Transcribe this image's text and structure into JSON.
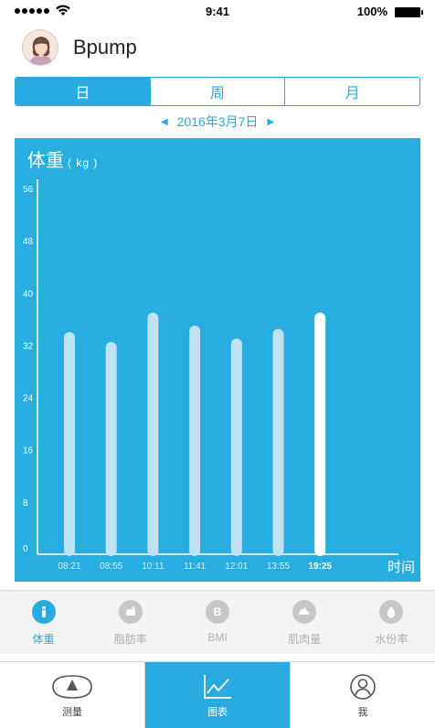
{
  "status_bar": {
    "time": "9:41",
    "battery": "100%"
  },
  "header": {
    "username": "Bpump"
  },
  "segments": [
    {
      "label": "日",
      "active": true
    },
    {
      "label": "周",
      "active": false
    },
    {
      "label": "月",
      "active": false
    }
  ],
  "date_nav": {
    "date": "2016年3月7日"
  },
  "chart_data": {
    "type": "bar",
    "title": "体重",
    "unit": "( kg )",
    "xlabel": "时间",
    "ylim": [
      0,
      56
    ],
    "yticks": [
      0,
      8,
      16,
      24,
      32,
      40,
      48,
      56
    ],
    "categories": [
      "08:21",
      "08:55",
      "10:11",
      "11:41",
      "12:01",
      "13:55",
      "19:25"
    ],
    "values": [
      34,
      32.5,
      37,
      35,
      33,
      34.5,
      37
    ],
    "highlight_index": 6,
    "colors": {
      "background": "#27ade0",
      "bar": "#bfe3f5",
      "bar_highlight": "#ffffff",
      "axis": "#ffffff"
    }
  },
  "metrics": [
    {
      "label": "体重",
      "icon": "person-icon",
      "glyph": "",
      "active": true
    },
    {
      "label": "脂肪率",
      "icon": "fat-icon",
      "glyph": "",
      "active": false
    },
    {
      "label": "BMI",
      "icon": "bmi-icon",
      "glyph": "B",
      "active": false
    },
    {
      "label": "肌肉量",
      "icon": "muscle-icon",
      "glyph": "",
      "active": false
    },
    {
      "label": "水份率",
      "icon": "water-drop-icon",
      "glyph": "",
      "active": false
    }
  ],
  "tabbar": [
    {
      "label": "测量",
      "icon": "scale-icon",
      "active": false
    },
    {
      "label": "图表",
      "icon": "chart-line-icon",
      "active": true
    },
    {
      "label": "我",
      "icon": "user-icon",
      "active": false
    }
  ],
  "colors": {
    "accent": "#29abe2",
    "inactive": "#c8c8c8"
  }
}
